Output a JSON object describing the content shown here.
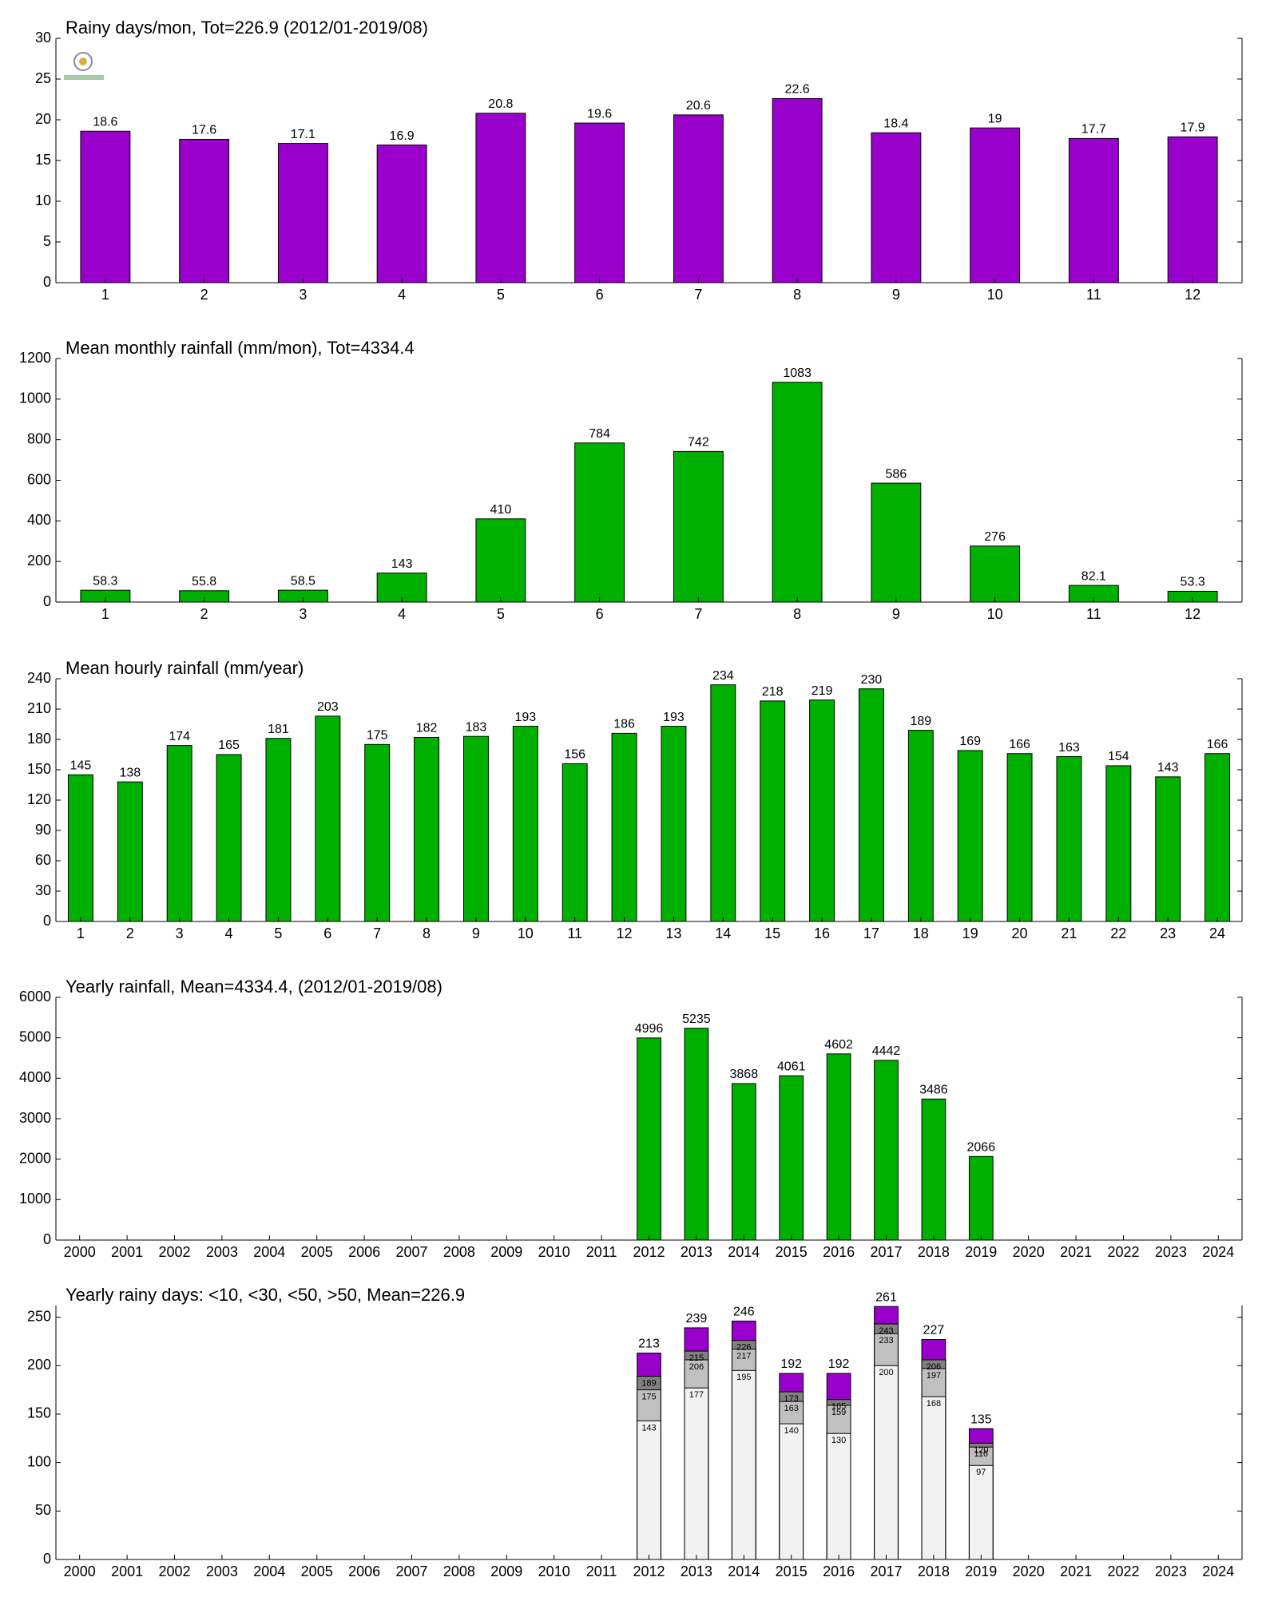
{
  "chart_data": [
    {
      "type": "bar",
      "title": "Rainy days/mon, Tot=226.9 (2012/01-2019/08)",
      "categories": [
        "1",
        "2",
        "3",
        "4",
        "5",
        "6",
        "7",
        "8",
        "9",
        "10",
        "11",
        "12"
      ],
      "values": [
        18.6,
        17.6,
        17.1,
        16.9,
        20.8,
        19.6,
        20.6,
        22.6,
        18.4,
        19,
        17.7,
        17.9
      ],
      "color": "#9900cc",
      "ylim": [
        0,
        30
      ],
      "yticks": [
        0,
        5,
        10,
        15,
        20,
        25,
        30
      ],
      "grid": false
    },
    {
      "type": "bar",
      "title": "Mean monthly rainfall (mm/mon), Tot=4334.4",
      "categories": [
        "1",
        "2",
        "3",
        "4",
        "5",
        "6",
        "7",
        "8",
        "9",
        "10",
        "11",
        "12"
      ],
      "values": [
        58.3,
        55.8,
        58.5,
        143,
        410,
        784,
        742,
        1083,
        586,
        276,
        82.1,
        53.3
      ],
      "color": "#00b000",
      "ylim": [
        0,
        1200
      ],
      "yticks": [
        0,
        200,
        400,
        600,
        800,
        1000,
        1200
      ],
      "grid": false
    },
    {
      "type": "bar",
      "title": "Mean hourly rainfall (mm/year)",
      "categories": [
        "1",
        "2",
        "3",
        "4",
        "5",
        "6",
        "7",
        "8",
        "9",
        "10",
        "11",
        "12",
        "13",
        "14",
        "15",
        "16",
        "17",
        "18",
        "19",
        "20",
        "21",
        "22",
        "23",
        "24"
      ],
      "values": [
        145,
        138,
        174,
        165,
        181,
        203,
        175,
        182,
        183,
        193,
        156,
        186,
        193,
        234,
        218,
        219,
        230,
        189,
        169,
        166,
        163,
        154,
        143,
        166
      ],
      "color": "#00b000",
      "ylim": [
        0,
        240
      ],
      "yticks": [
        0,
        30,
        60,
        90,
        120,
        150,
        180,
        210,
        240
      ],
      "grid": false
    },
    {
      "type": "bar",
      "title": "Yearly rainfall, Mean=4334.4, (2012/01-2019/08)",
      "categories": [
        "2000",
        "2001",
        "2002",
        "2003",
        "2004",
        "2005",
        "2006",
        "2007",
        "2008",
        "2009",
        "2010",
        "2011",
        "2012",
        "2013",
        "2014",
        "2015",
        "2016",
        "2017",
        "2018",
        "2019",
        "2020",
        "2021",
        "2022",
        "2023",
        "2024"
      ],
      "values": [
        null,
        null,
        null,
        null,
        null,
        null,
        null,
        null,
        null,
        null,
        null,
        null,
        4996,
        5235,
        3868,
        4061,
        4602,
        4442,
        3486,
        2066,
        null,
        null,
        null,
        null,
        null
      ],
      "color": "#00b000",
      "ylim": [
        0,
        6000
      ],
      "yticks": [
        0,
        1000,
        2000,
        3000,
        4000,
        5000,
        6000
      ],
      "grid": false
    },
    {
      "type": "bar",
      "title": "Yearly rainy days: <10, <30, <50, >50, Mean=226.9",
      "categories": [
        "2000",
        "2001",
        "2002",
        "2003",
        "2004",
        "2005",
        "2006",
        "2007",
        "2008",
        "2009",
        "2010",
        "2011",
        "2012",
        "2013",
        "2014",
        "2015",
        "2016",
        "2017",
        "2018",
        "2019",
        "2020",
        "2021",
        "2022",
        "2023",
        "2024"
      ],
      "series": [
        {
          "color": "#f2f2f2",
          "values": [
            null,
            null,
            null,
            null,
            null,
            null,
            null,
            null,
            null,
            null,
            null,
            null,
            143,
            177,
            195,
            140,
            130,
            200,
            168,
            97,
            null,
            null,
            null,
            null,
            null
          ]
        },
        {
          "color": "#c0c0c0",
          "values": [
            null,
            null,
            null,
            null,
            null,
            null,
            null,
            null,
            null,
            null,
            null,
            null,
            175,
            206,
            217,
            163,
            159,
            233,
            197,
            116,
            null,
            null,
            null,
            null,
            null
          ]
        },
        {
          "color": "#808080",
          "values": [
            null,
            null,
            null,
            null,
            null,
            null,
            null,
            null,
            null,
            null,
            null,
            null,
            189,
            215,
            226,
            173,
            165,
            243,
            206,
            120,
            null,
            null,
            null,
            null,
            null
          ]
        },
        {
          "color": "#9900cc",
          "values": [
            null,
            null,
            null,
            null,
            null,
            null,
            null,
            null,
            null,
            null,
            null,
            null,
            213,
            239,
            246,
            192,
            192,
            261,
            227,
            135,
            null,
            null,
            null,
            null,
            null
          ]
        }
      ],
      "ylim": [
        0,
        262
      ],
      "yticks": [
        0,
        50,
        100,
        150,
        200,
        250
      ],
      "grid": false
    }
  ]
}
